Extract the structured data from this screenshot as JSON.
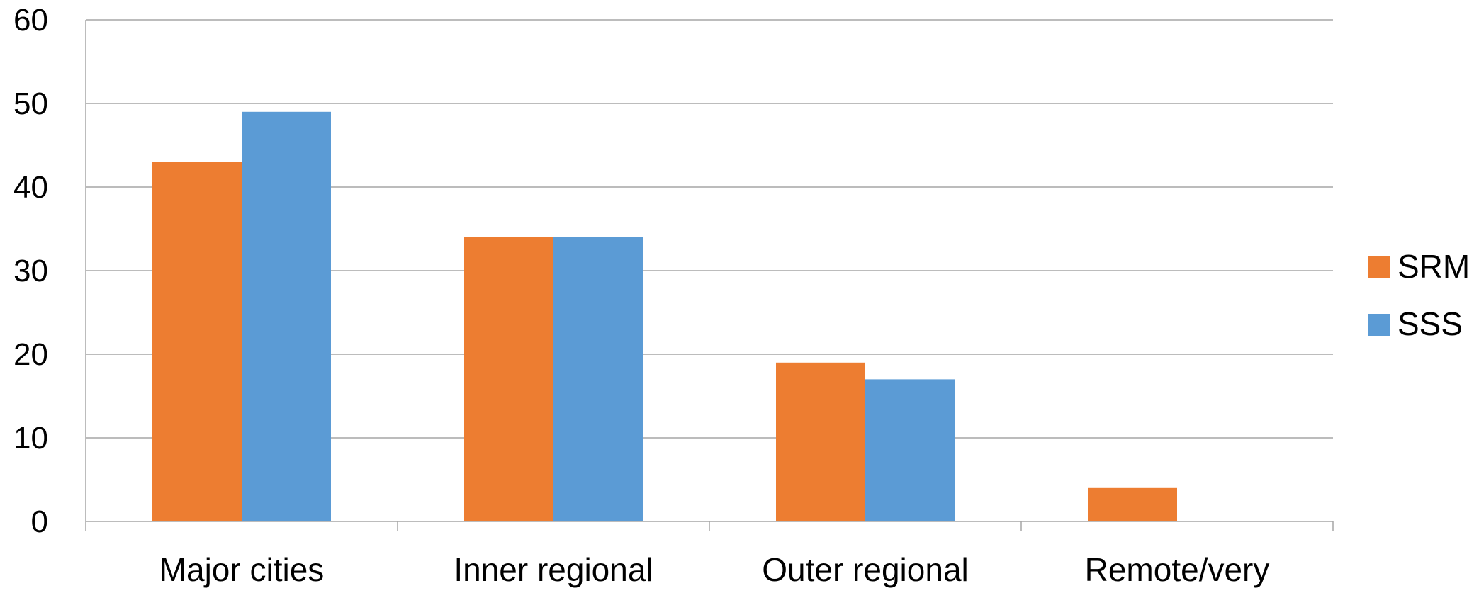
{
  "chart_data": {
    "type": "bar",
    "title": "",
    "xlabel": "",
    "ylabel": "",
    "categories": [
      "Major cities",
      "Inner regional",
      "Outer regional",
      "Remote/very"
    ],
    "series": [
      {
        "name": "SRM",
        "values": [
          43,
          34,
          19,
          4
        ],
        "color": "#ED7D31"
      },
      {
        "name": "SSS",
        "values": [
          49,
          34,
          17,
          0
        ],
        "color": "#5B9BD5"
      }
    ],
    "ylim": [
      0,
      60
    ],
    "yticks": [
      "0",
      "10",
      "20",
      "30",
      "40",
      "50",
      "60"
    ],
    "grid": true,
    "legend_position": "right"
  }
}
